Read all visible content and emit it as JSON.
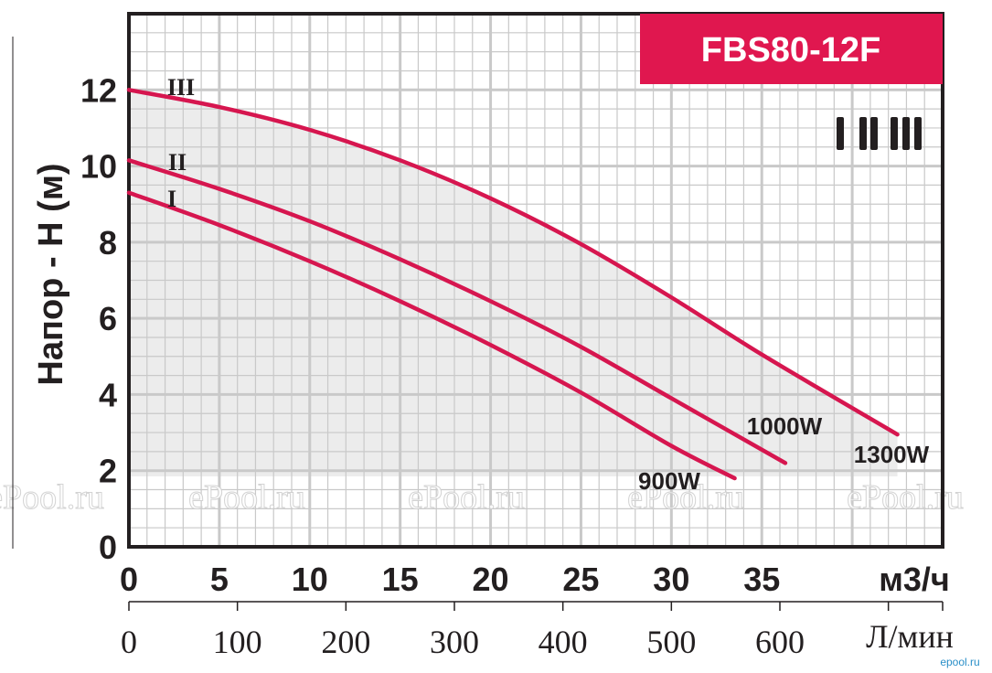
{
  "chart_data": {
    "type": "line",
    "model": "FBS80-12F",
    "ylabel": "Напор - H (м)",
    "xlabel": "м3/ч",
    "x2label": "Л/мин",
    "yticks": [
      "0",
      "2",
      "4",
      "6",
      "8",
      "10",
      "12"
    ],
    "xticks": [
      "0",
      "5",
      "10",
      "15",
      "20",
      "25",
      "30",
      "35"
    ],
    "x2ticks": [
      "0",
      "100",
      "200",
      "300",
      "400",
      "500",
      "600"
    ],
    "xlim": [
      0,
      45
    ],
    "ylim": [
      0,
      14
    ],
    "speed_icon": "I II III",
    "series": [
      {
        "speed": "I",
        "power": "900W",
        "x": [
          0,
          5,
          10,
          15,
          20,
          25,
          30,
          33.5
        ],
        "y": [
          9.3,
          8.45,
          7.5,
          6.45,
          5.3,
          4.05,
          2.65,
          1.8
        ]
      },
      {
        "speed": "II",
        "power": "1000W",
        "x": [
          0,
          5,
          10,
          15,
          20,
          25,
          30,
          36.3
        ],
        "y": [
          10.15,
          9.4,
          8.55,
          7.55,
          6.45,
          5.25,
          3.9,
          2.2
        ]
      },
      {
        "speed": "III",
        "power": "1300W",
        "x": [
          0,
          5,
          10,
          15,
          20,
          25,
          30,
          35,
          42.5
        ],
        "y": [
          12.0,
          11.55,
          10.95,
          10.15,
          9.15,
          7.95,
          6.55,
          5.05,
          2.95
        ]
      }
    ],
    "colors": {
      "curve": "#d6164f",
      "badge": "#e0174f",
      "band": "#ececec",
      "grid": "#c9c9c9",
      "axis": "#231f20"
    },
    "watermark": [
      "ePool.ru",
      "ePool.ru",
      "ePool.ru",
      "ePool.ru",
      "ePool.ru"
    ],
    "corner_text": "epool.ru"
  }
}
